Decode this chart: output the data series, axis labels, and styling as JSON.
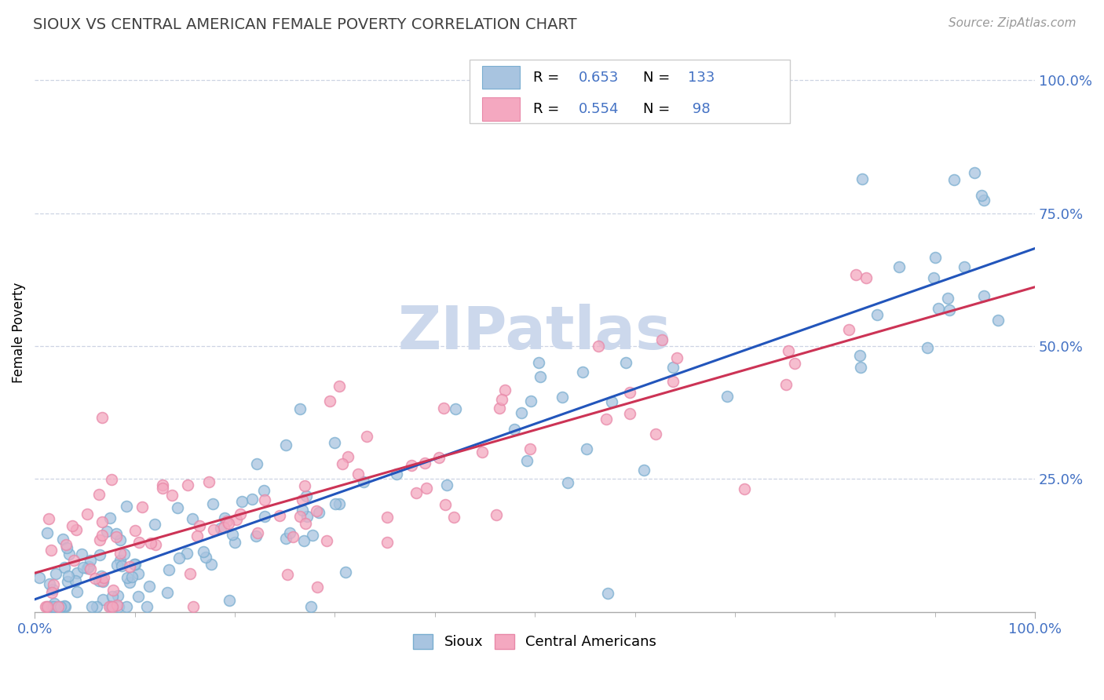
{
  "title": "SIOUX VS CENTRAL AMERICAN FEMALE POVERTY CORRELATION CHART",
  "source_text": "Source: ZipAtlas.com",
  "ylabel": "Female Poverty",
  "sioux_color": "#a8c4e0",
  "sioux_edge_color": "#7aaed0",
  "central_color": "#f4a8c0",
  "central_edge_color": "#e888a8",
  "sioux_line_color": "#2255bb",
  "central_line_color": "#cc3355",
  "watermark_color": "#ccd8ec",
  "tick_color": "#4472c4",
  "grid_color": "#c8d0e0",
  "title_color": "#404040",
  "source_color": "#999999",
  "title_fontsize": 14,
  "source_fontsize": 11,
  "tick_fontsize": 13,
  "legend_fontsize": 13,
  "watermark_fontsize": 55,
  "scatter_size": 100,
  "line_width": 2.2
}
